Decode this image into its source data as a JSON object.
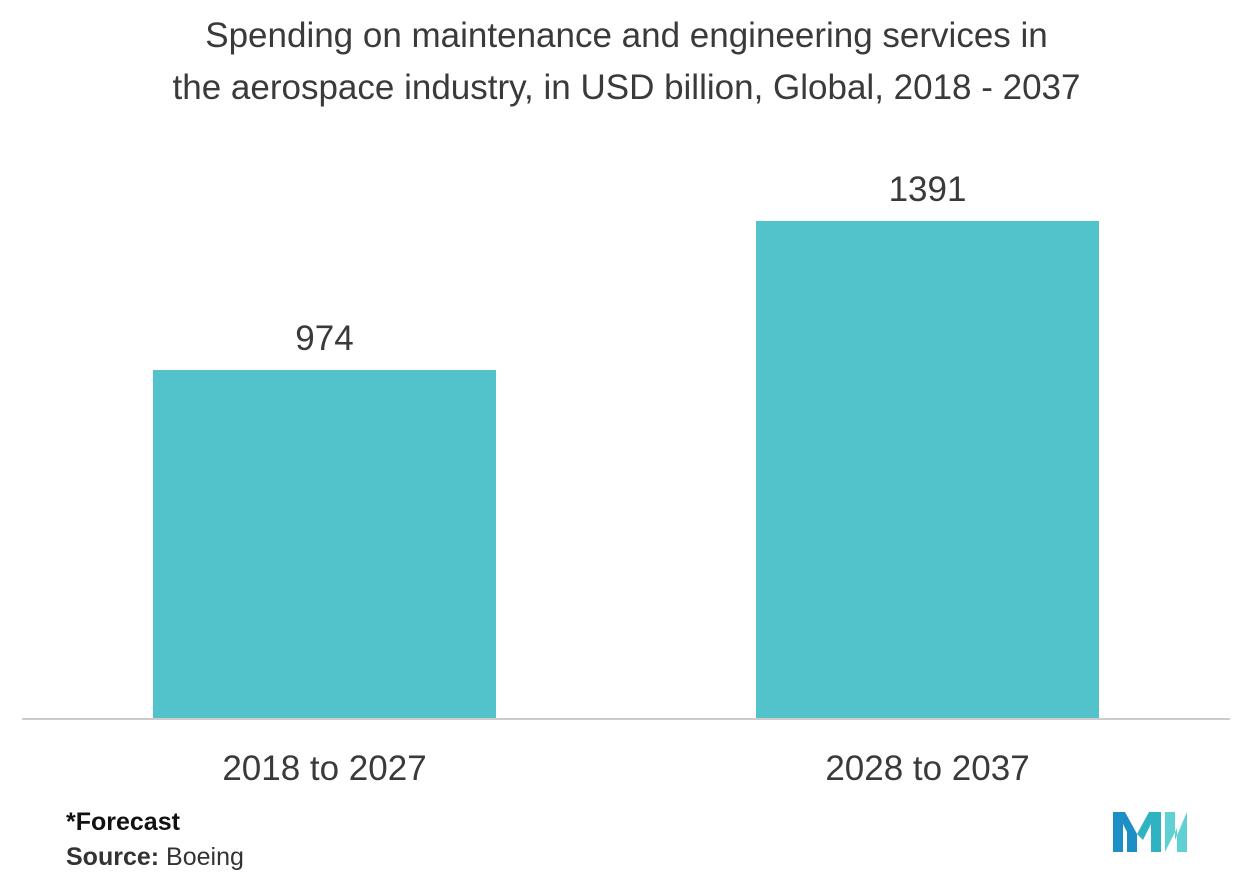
{
  "chart_data": {
    "type": "bar",
    "title_lines": [
      "Spending on maintenance and engineering services in",
      "the aerospace industry, in USD billion, Global, 2018 - 2037"
    ],
    "categories": [
      "2018 to 2027",
      "2028 to 2037"
    ],
    "values": [
      974,
      1391
    ],
    "data_labels": [
      "974",
      "1391"
    ],
    "xlabel": "",
    "ylabel": "",
    "ylim": [
      0,
      1391
    ],
    "grid": false,
    "bar_color": "#52c3ca",
    "axis_color": "#cccccc"
  },
  "footnote": "*Forecast",
  "source": {
    "label": "Source:",
    "value": "Boeing"
  },
  "logo": {
    "icon": "mordor-intelligence-logo-icon",
    "colors": [
      "#1e8fc4",
      "#2fb3c1",
      "#5fd0d3"
    ]
  }
}
